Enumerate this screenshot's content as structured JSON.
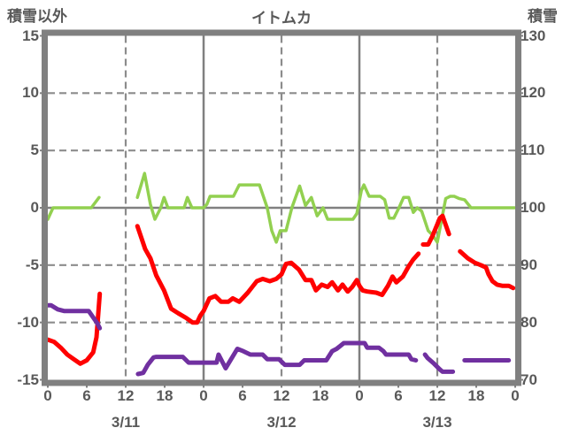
{
  "chart_data": {
    "type": "line",
    "title": "イトムカ",
    "grid_on": true,
    "legend": "none",
    "left_axis": {
      "label": "積雪以外",
      "ticks": [
        15,
        10,
        5,
        0,
        -5,
        -10,
        -15
      ],
      "range": [
        -15,
        15
      ]
    },
    "right_axis": {
      "label": "積雪",
      "ticks": [
        130,
        120,
        110,
        100,
        90,
        80,
        70
      ],
      "range": [
        70,
        130
      ]
    },
    "x_axis": {
      "range_hours": [
        0,
        72
      ],
      "hour_tick_labels": [
        "0",
        "6",
        "12",
        "18",
        "0",
        "6",
        "12",
        "18",
        "0",
        "6",
        "12",
        "18",
        "0"
      ],
      "hour_tick_positions": [
        0,
        6,
        12,
        18,
        24,
        30,
        36,
        42,
        48,
        54,
        60,
        66,
        72
      ],
      "date_labels": [
        "3/11",
        "3/12",
        "3/13"
      ],
      "date_center_hours": [
        12,
        36,
        60
      ]
    },
    "gridlines": {
      "horizontal_dashed_values": [
        10,
        5,
        -5,
        -10
      ],
      "horizontal_solid_values": [
        0
      ],
      "vertical_dashed_hours": [
        12,
        36,
        60
      ],
      "vertical_solid_hours": [
        24,
        48
      ]
    },
    "colors": {
      "green_series": "#92d050",
      "red_series": "#ff0000",
      "purple_series": "#7030a0",
      "grid": "#8c8c8c",
      "border": "#808080",
      "text": "#595959"
    },
    "series": [
      {
        "name": "green",
        "axis": "left",
        "color": "#92d050",
        "stroke_width": 3.5,
        "segments": [
          [
            [
              0,
              -1
            ],
            [
              0.8,
              0
            ],
            [
              2,
              0
            ],
            [
              3,
              0
            ],
            [
              4,
              0
            ],
            [
              5,
              0
            ],
            [
              6,
              0
            ],
            [
              6.7,
              0
            ],
            [
              7.9,
              0.9
            ]
          ],
          [
            [
              13.8,
              0.9
            ],
            [
              14.9,
              3
            ],
            [
              15.8,
              0.3
            ],
            [
              16.5,
              -1
            ],
            [
              17.4,
              0
            ],
            [
              17.9,
              0.9
            ],
            [
              18.5,
              0
            ],
            [
              20,
              0
            ],
            [
              21,
              0
            ],
            [
              21.5,
              0.9
            ],
            [
              22.2,
              0
            ],
            [
              23,
              0
            ],
            [
              24,
              0
            ],
            [
              24.5,
              0.3
            ],
            [
              25,
              1
            ],
            [
              26,
              1
            ],
            [
              27,
              1
            ],
            [
              28,
              1
            ],
            [
              28.6,
              1
            ],
            [
              29.5,
              2
            ],
            [
              31,
              2
            ],
            [
              32,
              2
            ],
            [
              32.6,
              2
            ],
            [
              33.8,
              0
            ],
            [
              34.5,
              -2
            ],
            [
              35.2,
              -3
            ],
            [
              35.8,
              -2
            ],
            [
              36.7,
              -2
            ],
            [
              37.6,
              0
            ],
            [
              38.8,
              1.9
            ],
            [
              39.7,
              0.2
            ],
            [
              40.6,
              0.9
            ],
            [
              41.5,
              -0.7
            ],
            [
              42.4,
              0
            ],
            [
              43.1,
              -1
            ],
            [
              44,
              -1
            ],
            [
              45,
              -1
            ],
            [
              46,
              -1
            ],
            [
              47,
              -1
            ],
            [
              47.6,
              -0.5
            ],
            [
              48.3,
              1.5
            ],
            [
              48.7,
              2
            ],
            [
              49.5,
              1
            ],
            [
              50.5,
              1
            ],
            [
              51.2,
              1
            ],
            [
              51.9,
              0.7
            ],
            [
              52.6,
              -0.9
            ],
            [
              53.3,
              -0.9
            ],
            [
              54.1,
              0
            ],
            [
              54.8,
              0.9
            ],
            [
              55.6,
              0.9
            ],
            [
              56.3,
              -0.4
            ],
            [
              56.9,
              0
            ],
            [
              57.6,
              -0.3
            ],
            [
              58.6,
              -2
            ],
            [
              59.3,
              -2.4
            ],
            [
              60,
              -3
            ],
            [
              61.3,
              0.8
            ],
            [
              62,
              1
            ],
            [
              62.6,
              1
            ],
            [
              63.4,
              0.8
            ],
            [
              64.2,
              0.7
            ],
            [
              65.2,
              0
            ],
            [
              66,
              0
            ],
            [
              67,
              0
            ],
            [
              68,
              0
            ],
            [
              69,
              0
            ],
            [
              70,
              0
            ],
            [
              71,
              0
            ],
            [
              71.9,
              0
            ]
          ]
        ]
      },
      {
        "name": "red",
        "axis": "left",
        "color": "#ff0000",
        "stroke_width": 5,
        "segments": [
          [
            [
              0,
              -11.5
            ],
            [
              1,
              -11.7
            ],
            [
              2,
              -12.2
            ],
            [
              3,
              -12.8
            ],
            [
              4,
              -13.2
            ],
            [
              5,
              -13.6
            ],
            [
              6,
              -13.3
            ],
            [
              7,
              -12.6
            ],
            [
              7.5,
              -11.3
            ],
            [
              8,
              -7.5
            ]
          ],
          [
            [
              13.8,
              -1.6
            ],
            [
              15,
              -3.6
            ],
            [
              15.8,
              -4.4
            ],
            [
              16.7,
              -5.9
            ],
            [
              17.9,
              -7.2
            ],
            [
              19,
              -8.8
            ],
            [
              20.1,
              -9.2
            ],
            [
              21.3,
              -9.6
            ],
            [
              22.3,
              -10
            ],
            [
              23,
              -10
            ],
            [
              23.5,
              -9.4
            ],
            [
              24,
              -9
            ],
            [
              24.9,
              -7.9
            ],
            [
              25.8,
              -7.7
            ],
            [
              26.7,
              -8.2
            ],
            [
              27.8,
              -8.2
            ],
            [
              28.5,
              -7.9
            ],
            [
              29.5,
              -8.2
            ],
            [
              30.8,
              -7.4
            ],
            [
              32.2,
              -6.4
            ],
            [
              33.1,
              -6.2
            ],
            [
              34.2,
              -6.4
            ],
            [
              35.2,
              -6.2
            ],
            [
              36,
              -5.8
            ],
            [
              36.7,
              -4.9
            ],
            [
              37.5,
              -4.8
            ],
            [
              38.7,
              -5.4
            ],
            [
              39.7,
              -6.3
            ],
            [
              40.6,
              -6.3
            ],
            [
              41.3,
              -7.2
            ],
            [
              42.2,
              -6.7
            ],
            [
              43.1,
              -6.9
            ],
            [
              43.8,
              -6.5
            ],
            [
              44.7,
              -7.2
            ],
            [
              45.4,
              -6.7
            ],
            [
              46.2,
              -7.3
            ],
            [
              46.9,
              -6.9
            ],
            [
              47.6,
              -6.3
            ],
            [
              48,
              -6.8
            ],
            [
              48.5,
              -7.2
            ],
            [
              49.2,
              -7.3
            ],
            [
              50.6,
              -7.4
            ],
            [
              51.5,
              -7.6
            ],
            [
              52.4,
              -6.8
            ],
            [
              53.1,
              -6
            ],
            [
              53.7,
              -6.5
            ],
            [
              54.7,
              -6
            ],
            [
              55.6,
              -5.1
            ],
            [
              56.3,
              -4.5
            ],
            [
              57.1,
              -4
            ]
          ],
          [
            [
              57.8,
              -3.2
            ],
            [
              58.6,
              -3.2
            ],
            [
              59.3,
              -2.4
            ],
            [
              60.4,
              -0.9
            ],
            [
              60.8,
              -0.7
            ],
            [
              61.8,
              -2.3
            ]
          ],
          [
            [
              63.5,
              -3.8
            ],
            [
              64.7,
              -4.4
            ],
            [
              65.8,
              -4.8
            ],
            [
              66.7,
              -5
            ],
            [
              67.5,
              -5.2
            ],
            [
              67.9,
              -5.8
            ],
            [
              68.5,
              -6.4
            ],
            [
              69.2,
              -6.7
            ],
            [
              70,
              -6.8
            ],
            [
              71,
              -6.8
            ],
            [
              71.7,
              -7
            ]
          ]
        ]
      },
      {
        "name": "purple",
        "axis": "right",
        "color": "#7030a0",
        "stroke_width": 5,
        "segments": [
          [
            [
              0,
              83
            ],
            [
              0.5,
              83
            ],
            [
              1.5,
              82.3
            ],
            [
              2.5,
              82
            ],
            [
              4,
              82
            ],
            [
              5,
              82
            ],
            [
              6.3,
              82
            ],
            [
              7.6,
              79.9
            ],
            [
              8,
              79
            ]
          ],
          [
            [
              13.9,
              71
            ],
            [
              14.7,
              71.2
            ],
            [
              15.4,
              72.6
            ],
            [
              16.3,
              73.9
            ],
            [
              16.7,
              74
            ],
            [
              18,
              74
            ],
            [
              19,
              74
            ],
            [
              20.8,
              74
            ],
            [
              21.7,
              73
            ],
            [
              23,
              73
            ],
            [
              24,
              73
            ],
            [
              25,
              73
            ],
            [
              26,
              73
            ],
            [
              26.3,
              74.4
            ],
            [
              27.4,
              72
            ],
            [
              29.2,
              75.4
            ],
            [
              30.1,
              75
            ],
            [
              31.2,
              74.4
            ],
            [
              32,
              74.4
            ],
            [
              33.1,
              74.4
            ],
            [
              33.8,
              73.6
            ],
            [
              35,
              73.6
            ],
            [
              35.6,
              73.6
            ],
            [
              36.5,
              72.6
            ],
            [
              38,
              72.6
            ],
            [
              38.8,
              72.6
            ],
            [
              39.5,
              73.4
            ],
            [
              41,
              73.4
            ],
            [
              42.9,
              73.4
            ],
            [
              43.8,
              75
            ],
            [
              44.5,
              75.4
            ],
            [
              45.6,
              76.4
            ],
            [
              47,
              76.4
            ],
            [
              48,
              76.4
            ],
            [
              48.8,
              76.4
            ],
            [
              49.2,
              75.6
            ],
            [
              51,
              75.6
            ],
            [
              51.7,
              75
            ],
            [
              52.1,
              74.4
            ],
            [
              54,
              74.4
            ],
            [
              55.6,
              74.4
            ],
            [
              56,
              73.6
            ],
            [
              56.7,
              73.4
            ]
          ],
          [
            [
              58.1,
              74.4
            ],
            [
              58.5,
              73.8
            ],
            [
              59.5,
              72.8
            ],
            [
              60.4,
              71.8
            ],
            [
              60.8,
              71.4
            ],
            [
              61.5,
              71.4
            ],
            [
              62.4,
              71.4
            ]
          ],
          [
            [
              64.2,
              73.4
            ],
            [
              66,
              73.4
            ],
            [
              68,
              73.4
            ],
            [
              70,
              73.4
            ],
            [
              71,
              73.4
            ]
          ]
        ]
      }
    ]
  }
}
